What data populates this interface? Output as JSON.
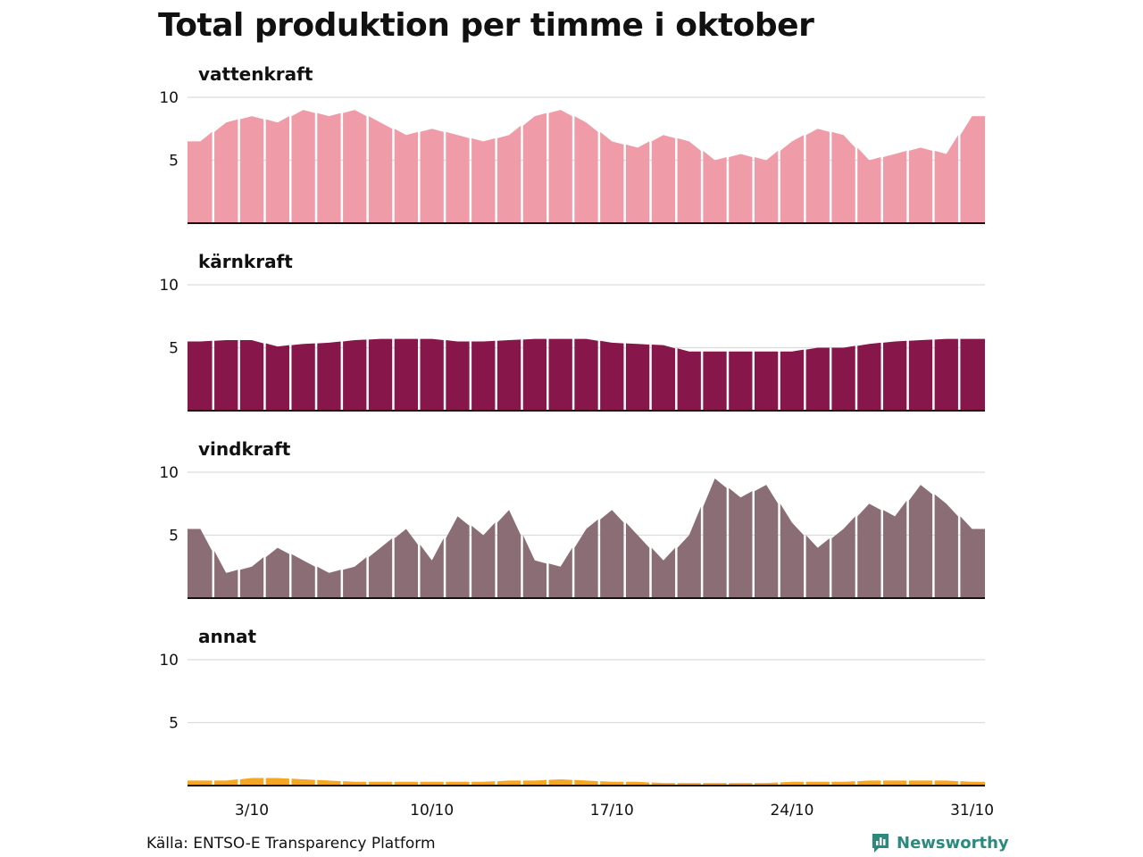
{
  "chart_data": {
    "type": "area",
    "title": "Total produktion per timme i oktober",
    "x": [
      "1/10",
      "2/10",
      "3/10",
      "4/10",
      "5/10",
      "6/10",
      "7/10",
      "8/10",
      "9/10",
      "10/10",
      "11/10",
      "12/10",
      "13/10",
      "14/10",
      "15/10",
      "16/10",
      "17/10",
      "18/10",
      "19/10",
      "20/10",
      "21/10",
      "22/10",
      "23/10",
      "24/10",
      "25/10",
      "26/10",
      "27/10",
      "28/10",
      "29/10",
      "30/10",
      "31/10"
    ],
    "x_ticks": [
      "3/10",
      "10/10",
      "17/10",
      "24/10",
      "31/10"
    ],
    "y_ticks": [
      5,
      10
    ],
    "ylim": [
      0,
      12
    ],
    "grid": true,
    "series": [
      {
        "name": "vattenkraft",
        "color": "#f09ba8",
        "values": [
          6.5,
          8.0,
          8.5,
          8.0,
          9.0,
          8.5,
          9.0,
          8.0,
          7.0,
          7.5,
          7.0,
          6.5,
          7.0,
          8.5,
          9.0,
          8.0,
          6.5,
          6.0,
          7.0,
          6.5,
          5.0,
          5.5,
          5.0,
          6.5,
          7.5,
          7.0,
          5.0,
          5.5,
          6.0,
          5.5,
          8.5
        ]
      },
      {
        "name": "kärnkraft",
        "color": "#87174a",
        "values": [
          5.5,
          5.6,
          5.6,
          5.1,
          5.3,
          5.4,
          5.6,
          5.7,
          5.7,
          5.7,
          5.5,
          5.5,
          5.6,
          5.7,
          5.7,
          5.7,
          5.4,
          5.3,
          5.2,
          4.7,
          4.7,
          4.7,
          4.7,
          4.7,
          5.0,
          5.0,
          5.3,
          5.5,
          5.6,
          5.7,
          5.7
        ]
      },
      {
        "name": "vindkraft",
        "color": "#8b6e75",
        "values": [
          5.5,
          2.0,
          2.5,
          4.0,
          3.0,
          2.0,
          2.5,
          4.0,
          5.5,
          3.0,
          6.5,
          5.0,
          7.0,
          3.0,
          2.5,
          5.5,
          7.0,
          5.0,
          3.0,
          5.0,
          9.5,
          8.0,
          9.0,
          6.0,
          4.0,
          5.5,
          7.5,
          6.5,
          9.0,
          7.5,
          5.5
        ]
      },
      {
        "name": "annat",
        "color": "#f5a623",
        "values": [
          0.4,
          0.4,
          0.6,
          0.6,
          0.5,
          0.4,
          0.3,
          0.3,
          0.3,
          0.3,
          0.3,
          0.3,
          0.4,
          0.4,
          0.5,
          0.4,
          0.3,
          0.3,
          0.2,
          0.2,
          0.2,
          0.2,
          0.2,
          0.3,
          0.3,
          0.3,
          0.4,
          0.4,
          0.4,
          0.4,
          0.3
        ]
      }
    ]
  },
  "footer": {
    "source": "Källa: ENTSO-E Transparency Platform",
    "brand": "Newsworthy",
    "brand_icon": "newsworthy-chart-icon"
  }
}
